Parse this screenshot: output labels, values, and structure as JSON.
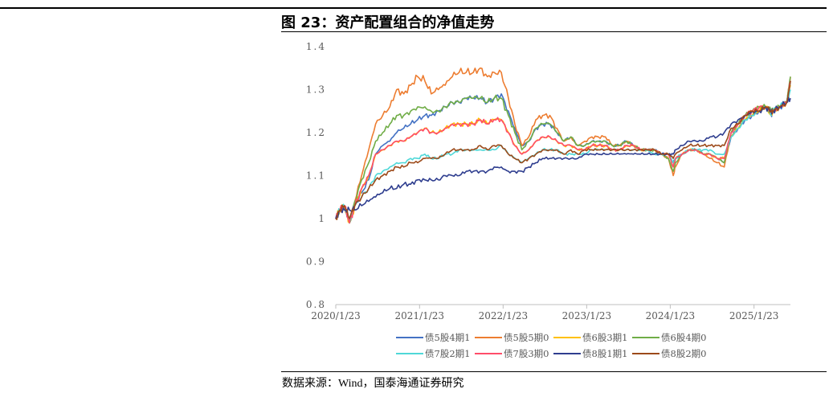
{
  "figure": {
    "title": "图 23：资产配置组合的净值走势",
    "source": "数据来源：Wind，国泰海通证券研究"
  },
  "chart_data": {
    "type": "line",
    "title": "",
    "xlabel": "",
    "ylabel": "",
    "ylim": [
      0.8,
      1.4
    ],
    "y_ticks": [
      0.8,
      0.9,
      1.0,
      1.1,
      1.2,
      1.3,
      1.4
    ],
    "y_tick_labels": [
      "0.8",
      "0.9",
      "1",
      "1.1",
      "1.2",
      "1.3",
      "1.4"
    ],
    "x_ticks": [
      "2020/1/23",
      "2021/1/23",
      "2022/1/23",
      "2023/1/23",
      "2024/1/23",
      "2025/1/23"
    ],
    "x_start": "2020/1/23",
    "x_end": "2025/7/1",
    "grid": false,
    "legend_position": "bottom",
    "x": [
      "2020/1/23",
      "2020/2/10",
      "2020/3/1",
      "2020/3/23",
      "2020/4/15",
      "2020/5/15",
      "2020/6/15",
      "2020/7/15",
      "2020/8/15",
      "2020/9/15",
      "2020/10/15",
      "2020/11/15",
      "2020/12/15",
      "2021/1/15",
      "2021/2/15",
      "2021/3/15",
      "2021/4/15",
      "2021/5/15",
      "2021/6/15",
      "2021/7/15",
      "2021/8/15",
      "2021/9/15",
      "2021/10/15",
      "2021/11/15",
      "2021/12/15",
      "2022/1/15",
      "2022/2/15",
      "2022/3/15",
      "2022/4/15",
      "2022/5/15",
      "2022/6/15",
      "2022/7/15",
      "2022/8/15",
      "2022/9/15",
      "2022/10/15",
      "2022/11/15",
      "2022/12/15",
      "2023/1/15",
      "2023/2/15",
      "2023/3/15",
      "2023/4/15",
      "2023/5/15",
      "2023/6/15",
      "2023/7/15",
      "2023/8/15",
      "2023/9/15",
      "2023/10/15",
      "2023/11/15",
      "2023/12/15",
      "2024/1/15",
      "2024/2/5",
      "2024/2/15",
      "2024/3/15",
      "2024/4/15",
      "2024/5/15",
      "2024/6/15",
      "2024/7/15",
      "2024/8/15",
      "2024/9/15",
      "2024/10/15",
      "2024/11/15",
      "2024/12/15",
      "2025/1/15",
      "2025/2/15",
      "2025/3/15",
      "2025/4/8",
      "2025/4/15",
      "2025/5/15",
      "2025/6/15",
      "2025/7/1"
    ],
    "series": [
      {
        "name": "债5股4期1",
        "color": "#4472C4",
        "values": [
          1.0,
          1.02,
          1.03,
          0.99,
          1.03,
          1.06,
          1.09,
          1.15,
          1.17,
          1.18,
          1.2,
          1.21,
          1.22,
          1.23,
          1.24,
          1.24,
          1.25,
          1.26,
          1.27,
          1.27,
          1.28,
          1.28,
          1.28,
          1.27,
          1.28,
          1.29,
          1.25,
          1.21,
          1.17,
          1.18,
          1.21,
          1.22,
          1.22,
          1.2,
          1.18,
          1.19,
          1.17,
          1.17,
          1.18,
          1.18,
          1.18,
          1.17,
          1.17,
          1.18,
          1.17,
          1.16,
          1.16,
          1.16,
          1.15,
          1.15,
          1.13,
          1.14,
          1.15,
          1.16,
          1.16,
          1.15,
          1.15,
          1.14,
          1.13,
          1.19,
          1.21,
          1.23,
          1.24,
          1.25,
          1.26,
          1.24,
          1.25,
          1.26,
          1.27,
          1.32
        ]
      },
      {
        "name": "债5股5期0",
        "color": "#ED7D31",
        "values": [
          1.0,
          1.02,
          1.03,
          0.99,
          1.04,
          1.1,
          1.16,
          1.22,
          1.24,
          1.26,
          1.3,
          1.29,
          1.31,
          1.33,
          1.32,
          1.29,
          1.3,
          1.31,
          1.33,
          1.34,
          1.34,
          1.34,
          1.35,
          1.33,
          1.34,
          1.34,
          1.28,
          1.22,
          1.17,
          1.19,
          1.23,
          1.24,
          1.24,
          1.21,
          1.18,
          1.19,
          1.17,
          1.18,
          1.19,
          1.19,
          1.19,
          1.17,
          1.17,
          1.18,
          1.17,
          1.16,
          1.16,
          1.16,
          1.15,
          1.14,
          1.1,
          1.12,
          1.15,
          1.16,
          1.16,
          1.15,
          1.14,
          1.13,
          1.12,
          1.2,
          1.22,
          1.24,
          1.25,
          1.26,
          1.26,
          1.25,
          1.25,
          1.26,
          1.27,
          1.33
        ]
      },
      {
        "name": "债6股3期1",
        "color": "#FFC000",
        "values": [
          1.0,
          1.02,
          1.03,
          0.99,
          1.03,
          1.07,
          1.1,
          1.15,
          1.16,
          1.17,
          1.18,
          1.18,
          1.19,
          1.2,
          1.21,
          1.2,
          1.2,
          1.21,
          1.22,
          1.22,
          1.22,
          1.22,
          1.23,
          1.22,
          1.23,
          1.23,
          1.2,
          1.17,
          1.15,
          1.16,
          1.18,
          1.19,
          1.19,
          1.18,
          1.17,
          1.17,
          1.16,
          1.16,
          1.17,
          1.17,
          1.17,
          1.16,
          1.16,
          1.17,
          1.17,
          1.16,
          1.16,
          1.16,
          1.15,
          1.15,
          1.12,
          1.14,
          1.15,
          1.16,
          1.16,
          1.15,
          1.15,
          1.14,
          1.14,
          1.19,
          1.21,
          1.23,
          1.24,
          1.25,
          1.26,
          1.24,
          1.25,
          1.26,
          1.27,
          1.31
        ]
      },
      {
        "name": "债6股4期0",
        "color": "#70AD47",
        "values": [
          1.0,
          1.02,
          1.03,
          0.99,
          1.04,
          1.09,
          1.13,
          1.18,
          1.2,
          1.22,
          1.24,
          1.24,
          1.25,
          1.26,
          1.26,
          1.25,
          1.25,
          1.26,
          1.27,
          1.27,
          1.28,
          1.28,
          1.28,
          1.27,
          1.28,
          1.28,
          1.24,
          1.2,
          1.16,
          1.18,
          1.21,
          1.22,
          1.22,
          1.2,
          1.18,
          1.19,
          1.17,
          1.17,
          1.18,
          1.18,
          1.18,
          1.17,
          1.17,
          1.18,
          1.17,
          1.16,
          1.16,
          1.16,
          1.15,
          1.14,
          1.11,
          1.13,
          1.15,
          1.16,
          1.16,
          1.15,
          1.15,
          1.14,
          1.13,
          1.2,
          1.22,
          1.24,
          1.25,
          1.26,
          1.26,
          1.25,
          1.25,
          1.26,
          1.27,
          1.33
        ]
      },
      {
        "name": "债7股2期1",
        "color": "#4FD8D8",
        "values": [
          1.0,
          1.02,
          1.03,
          0.99,
          1.03,
          1.05,
          1.07,
          1.1,
          1.11,
          1.12,
          1.13,
          1.13,
          1.14,
          1.14,
          1.15,
          1.14,
          1.14,
          1.15,
          1.15,
          1.16,
          1.16,
          1.16,
          1.16,
          1.16,
          1.16,
          1.17,
          1.15,
          1.14,
          1.13,
          1.14,
          1.15,
          1.16,
          1.16,
          1.16,
          1.15,
          1.15,
          1.15,
          1.15,
          1.16,
          1.16,
          1.16,
          1.16,
          1.16,
          1.16,
          1.16,
          1.16,
          1.16,
          1.15,
          1.15,
          1.15,
          1.13,
          1.14,
          1.15,
          1.16,
          1.16,
          1.16,
          1.16,
          1.15,
          1.15,
          1.19,
          1.21,
          1.23,
          1.24,
          1.25,
          1.26,
          1.24,
          1.25,
          1.26,
          1.27,
          1.3
        ]
      },
      {
        "name": "债7股3期0",
        "color": "#FF4D6A",
        "values": [
          1.0,
          1.02,
          1.03,
          0.99,
          1.03,
          1.07,
          1.1,
          1.15,
          1.16,
          1.17,
          1.18,
          1.18,
          1.19,
          1.2,
          1.21,
          1.2,
          1.2,
          1.21,
          1.22,
          1.22,
          1.22,
          1.22,
          1.23,
          1.22,
          1.23,
          1.23,
          1.2,
          1.17,
          1.15,
          1.16,
          1.18,
          1.19,
          1.19,
          1.18,
          1.17,
          1.17,
          1.16,
          1.16,
          1.17,
          1.17,
          1.17,
          1.16,
          1.16,
          1.17,
          1.17,
          1.16,
          1.16,
          1.16,
          1.15,
          1.15,
          1.12,
          1.14,
          1.15,
          1.16,
          1.16,
          1.15,
          1.15,
          1.14,
          1.14,
          1.2,
          1.22,
          1.24,
          1.25,
          1.26,
          1.26,
          1.25,
          1.25,
          1.26,
          1.27,
          1.32
        ]
      },
      {
        "name": "债8股1期1",
        "color": "#2F3E8F",
        "values": [
          1.0,
          1.02,
          1.02,
          1.02,
          1.02,
          1.03,
          1.04,
          1.05,
          1.06,
          1.07,
          1.07,
          1.08,
          1.08,
          1.09,
          1.09,
          1.09,
          1.09,
          1.1,
          1.1,
          1.1,
          1.11,
          1.11,
          1.11,
          1.11,
          1.12,
          1.12,
          1.11,
          1.11,
          1.11,
          1.12,
          1.13,
          1.14,
          1.14,
          1.14,
          1.14,
          1.14,
          1.14,
          1.15,
          1.15,
          1.15,
          1.15,
          1.15,
          1.15,
          1.15,
          1.15,
          1.15,
          1.15,
          1.15,
          1.15,
          1.15,
          1.15,
          1.16,
          1.17,
          1.18,
          1.18,
          1.18,
          1.19,
          1.19,
          1.2,
          1.22,
          1.23,
          1.24,
          1.25,
          1.25,
          1.26,
          1.25,
          1.25,
          1.26,
          1.27,
          1.28
        ]
      },
      {
        "name": "债8股2期0",
        "color": "#9C4A1A",
        "values": [
          1.0,
          1.02,
          1.03,
          1.0,
          1.03,
          1.05,
          1.07,
          1.09,
          1.1,
          1.11,
          1.12,
          1.12,
          1.13,
          1.13,
          1.14,
          1.14,
          1.14,
          1.15,
          1.16,
          1.16,
          1.16,
          1.16,
          1.17,
          1.16,
          1.17,
          1.17,
          1.15,
          1.14,
          1.13,
          1.14,
          1.15,
          1.16,
          1.16,
          1.16,
          1.15,
          1.16,
          1.15,
          1.16,
          1.16,
          1.16,
          1.16,
          1.16,
          1.16,
          1.16,
          1.16,
          1.16,
          1.16,
          1.16,
          1.15,
          1.15,
          1.14,
          1.15,
          1.16,
          1.17,
          1.17,
          1.17,
          1.17,
          1.17,
          1.17,
          1.21,
          1.22,
          1.24,
          1.25,
          1.25,
          1.26,
          1.25,
          1.25,
          1.26,
          1.27,
          1.32
        ]
      }
    ]
  }
}
